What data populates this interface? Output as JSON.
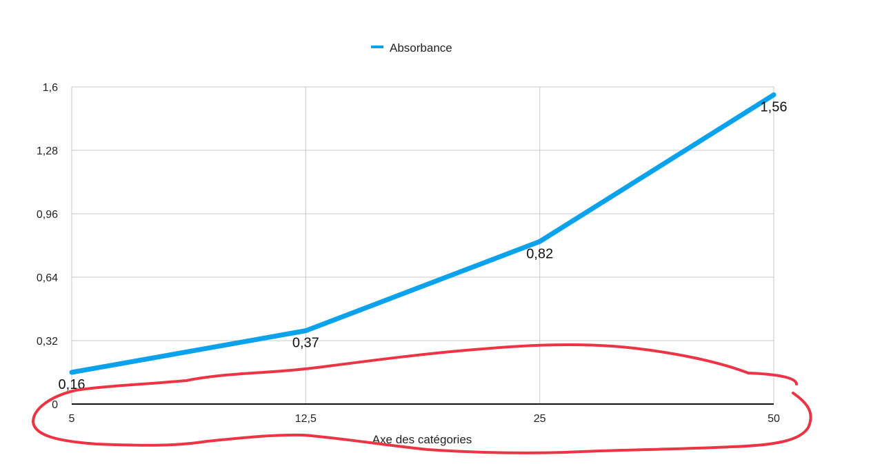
{
  "chart_data": {
    "type": "line",
    "categories": [
      "5",
      "12,5",
      "25",
      "50"
    ],
    "series": [
      {
        "name": "Absorbance",
        "values": [
          0.16,
          0.37,
          0.82,
          1.56
        ],
        "labels": [
          "0,16",
          "0,37",
          "0,82",
          "1,56"
        ]
      }
    ],
    "xlabel": "Axe des catégories",
    "ylabel": "",
    "ylim": [
      0,
      1.6
    ],
    "yticks": [
      0,
      0.32,
      0.64,
      0.96,
      1.28,
      1.6
    ],
    "ytick_labels": [
      "0",
      "0,32",
      "0,64",
      "0,96",
      "1,28",
      "1,6"
    ],
    "grid": true,
    "legend": "top-center",
    "series_color": "#0aa2ec",
    "annotation_color": "#ec3444"
  }
}
